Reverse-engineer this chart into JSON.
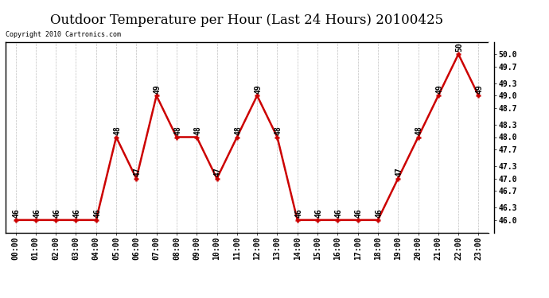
{
  "title": "Outdoor Temperature per Hour (Last 24 Hours) 20100425",
  "copyright": "Copyright 2010 Cartronics.com",
  "hours": [
    "00:00",
    "01:00",
    "02:00",
    "03:00",
    "04:00",
    "05:00",
    "06:00",
    "07:00",
    "08:00",
    "09:00",
    "10:00",
    "11:00",
    "12:00",
    "13:00",
    "14:00",
    "15:00",
    "16:00",
    "17:00",
    "18:00",
    "19:00",
    "20:00",
    "21:00",
    "22:00",
    "23:00"
  ],
  "values": [
    46,
    46,
    46,
    46,
    46,
    48,
    47,
    49,
    48,
    48,
    47,
    48,
    49,
    48,
    46,
    46,
    46,
    46,
    46,
    47,
    48,
    49,
    50,
    49
  ],
  "ylim": [
    45.7,
    50.3
  ],
  "yticks": [
    46.0,
    46.3,
    46.7,
    47.0,
    47.3,
    47.7,
    48.0,
    48.3,
    48.7,
    49.0,
    49.3,
    49.7,
    50.0
  ],
  "line_color": "#cc0000",
  "bg_color": "#ffffff",
  "grid_color": "#b0b0b0",
  "title_fontsize": 12,
  "tick_fontsize": 7,
  "annot_fontsize": 7,
  "copyright_fontsize": 6
}
